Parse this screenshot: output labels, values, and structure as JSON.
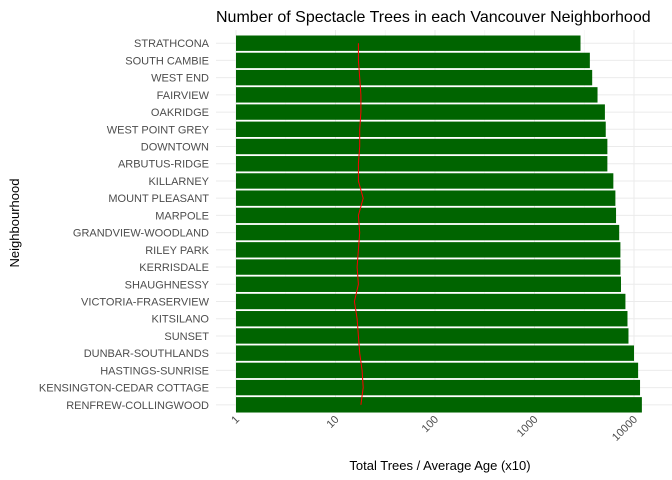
{
  "chart_data": {
    "type": "bar",
    "orientation": "horizontal",
    "title": "Number of Spectacle Trees in each Vancouver Neighborhood",
    "xlabel": "Total Trees / Average Age (x10)",
    "ylabel": "Neighbourhood",
    "x_scale": "log10",
    "xlim": [
      1,
      13000
    ],
    "x_ticks": [
      "1",
      "10",
      "100",
      "1000",
      "10000"
    ],
    "x_tick_values": [
      1,
      10,
      100,
      1000,
      10000
    ],
    "categories": [
      "STRATHCONA",
      "SOUTH CAMBIE",
      "WEST END",
      "FAIRVIEW",
      "OAKRIDGE",
      "WEST POINT GREY",
      "DOWNTOWN",
      "ARBUTUS-RIDGE",
      "KILLARNEY",
      "MOUNT PLEASANT",
      "MARPOLE",
      "GRANDVIEW-WOODLAND",
      "RILEY PARK",
      "KERRISDALE",
      "SHAUGHNESSY",
      "VICTORIA-FRASERVIEW",
      "KITSILANO",
      "SUNSET",
      "DUNBAR-SOUTHLANDS",
      "HASTINGS-SUNRISE",
      "KENSINGTON-CEDAR COTTAGE",
      "RENFREW-COLLINGWOOD"
    ],
    "series": [
      {
        "type": "bar",
        "color": "#006400",
        "values": [
          2900,
          3600,
          3800,
          4300,
          5100,
          5200,
          5400,
          5400,
          6200,
          6500,
          6600,
          7100,
          7300,
          7300,
          7400,
          8200,
          8600,
          8800,
          10000,
          11000,
          11500,
          12000
        ]
      },
      {
        "type": "line",
        "color": "#ff0000",
        "values": [
          17,
          17,
          17.5,
          18,
          18,
          17.5,
          17.5,
          17,
          17,
          19,
          17,
          17.5,
          17,
          16.5,
          17,
          15.5,
          16.5,
          17,
          17.5,
          18.5,
          19,
          18
        ]
      }
    ],
    "grid": true,
    "legend": "none"
  }
}
